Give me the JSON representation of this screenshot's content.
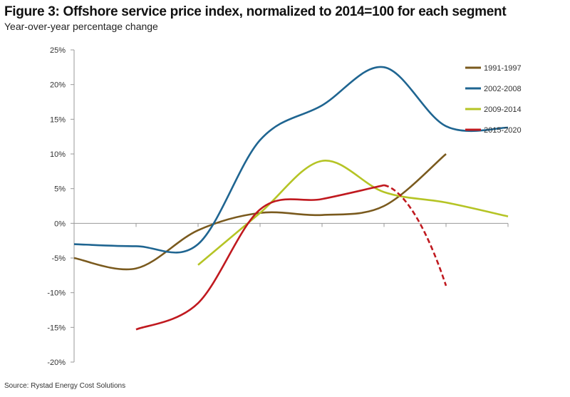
{
  "chart_data": {
    "type": "line",
    "title": "Figure 3: Offshore service price index, normalized to 2014=100 for each segment",
    "subtitle": "Year-over-year percentage change",
    "source": "Source: Rystad Energy Cost Solutions",
    "xlabel": "",
    "ylabel": "",
    "x": [
      0,
      1,
      2,
      3,
      4,
      5,
      6,
      7
    ],
    "ylim": [
      -20,
      25
    ],
    "yticks": [
      25,
      20,
      15,
      10,
      5,
      0,
      -5,
      -10,
      -15,
      -20
    ],
    "ytick_labels": [
      "25%",
      "20%",
      "15%",
      "10%",
      "5%",
      "0%",
      "-5%",
      "-10%",
      "-15%",
      "-20%"
    ],
    "grid": false,
    "legend_position": "top-right",
    "series": [
      {
        "name": "1991-1997",
        "color": "#7a5a1e",
        "values": [
          -5,
          -6.5,
          -1,
          1.5,
          1.2,
          2.5,
          10,
          null
        ]
      },
      {
        "name": "2002-2008",
        "color": "#1f6591",
        "values": [
          -3,
          -3.3,
          -3,
          12,
          17,
          22.5,
          14,
          13.8
        ]
      },
      {
        "name": "2009-2014",
        "color": "#b5c425",
        "values": [
          null,
          null,
          -6,
          1.5,
          9,
          4.5,
          3,
          1
        ]
      },
      {
        "name": "2015-2020",
        "color": "#c0191f",
        "values": [
          null,
          -15.3,
          -11.5,
          2,
          3.5,
          5.5,
          -9,
          null
        ],
        "dashed_from_index": 5
      }
    ]
  }
}
